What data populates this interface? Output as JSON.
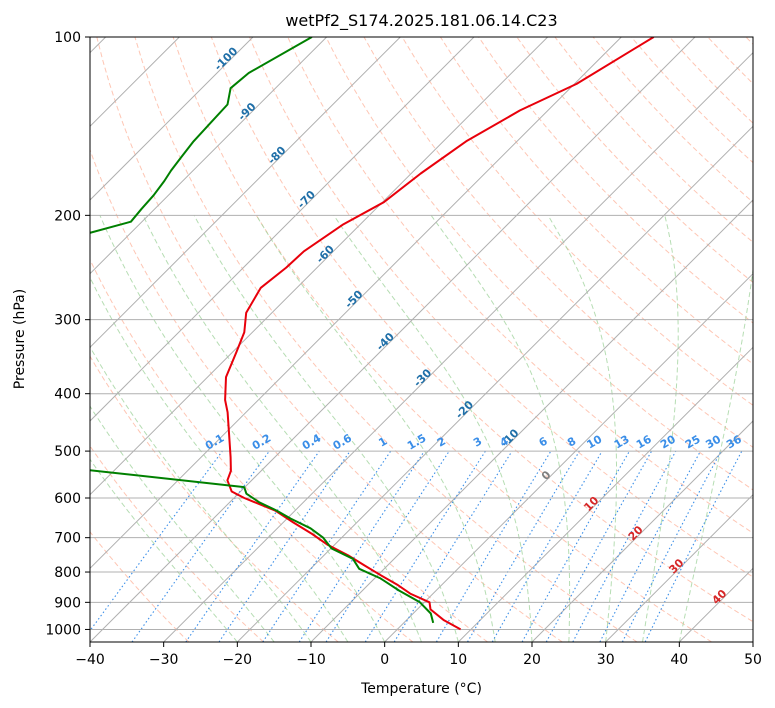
{
  "chart_data": {
    "type": "skew-t",
    "title": "wetPf2_S174.2025.181.06.14.C23",
    "xlabel": "Temperature (°C)",
    "ylabel": "Pressure (hPa)",
    "xlim": [
      -40,
      50
    ],
    "ylim": [
      1050,
      100
    ],
    "x_ticks": [
      "−40",
      "−30",
      "−20",
      "−10",
      "0",
      "10",
      "20",
      "30",
      "40",
      "50"
    ],
    "y_ticks": [
      "100",
      "200",
      "300",
      "400",
      "500",
      "600",
      "700",
      "800",
      "900",
      "1000"
    ],
    "grid": true,
    "isotherm_labels": [
      "-100",
      "-90",
      "-80",
      "-70",
      "-60",
      "-50",
      "-40",
      "-30",
      "-20",
      "-10",
      "0",
      "10",
      "20",
      "30",
      "40"
    ],
    "mixing_ratio_labels": [
      "0.1",
      "0.2",
      "0.4",
      "0.6",
      "1",
      "1.5",
      "2",
      "3",
      "4",
      "6",
      "8",
      "10",
      "13",
      "16",
      "20",
      "25",
      "30",
      "36"
    ],
    "series": [
      {
        "role": "temperature",
        "color": "#e8000b",
        "x": [
          -45.6,
          -49.7,
          -53.8,
          -56.9,
          -58.7,
          -59.8,
          -62.3,
          -64.0,
          -64.2,
          -64.9,
          -63.5,
          -61.1,
          -59.5,
          -57.5,
          -54.5,
          -52.5,
          -50.8,
          -48.4,
          -46.0,
          -44.1,
          -43.3,
          -41.2,
          -38.6,
          -32.7,
          -28.6,
          -24.5,
          -20.9,
          -16.7,
          -13.1,
          -9.6,
          -6.1,
          -3.1,
          0.7,
          1.8,
          5.1,
          8.6
        ],
        "y": [
          100,
          120,
          133,
          150,
          170,
          190,
          207,
          230,
          245,
          265,
          292,
          315,
          340,
          375,
          410,
          430,
          450,
          480,
          512,
          540,
          560,
          585,
          600,
          630,
          660,
          690,
          720,
          750,
          780,
          810,
          840,
          870,
          900,
          925,
          965,
          1000
        ]
      },
      {
        "role": "dewpoint",
        "color": "#008000",
        "x": [
          -92.0,
          -95.7,
          -96.1,
          -94.3,
          -94.1,
          -93.9,
          -93.4,
          -93.0,
          -92.5,
          -92.0,
          -91.8,
          -91.5,
          -98.1,
          -102.6,
          -99.6,
          -95.1,
          -93.2,
          -89.3,
          -85.6,
          -82.2,
          -90.6,
          -101.8,
          -86.0,
          -40.1,
          -38.9,
          -36.0,
          -32.5,
          -29.5,
          -25.5,
          -22.5,
          -19.9,
          -15.6,
          -13.4,
          -9.2,
          -5.0,
          -0.6,
          2.4,
          4.0
        ],
        "y": [
          100,
          115,
          122,
          130,
          140,
          150,
          160,
          168,
          175,
          185,
          195,
          205,
          220,
          232,
          250,
          270,
          290,
          330,
          370,
          405,
          425,
          450,
          505,
          575,
          590,
          610,
          630,
          650,
          675,
          700,
          730,
          760,
          790,
          820,
          860,
          900,
          940,
          975
        ]
      }
    ]
  }
}
